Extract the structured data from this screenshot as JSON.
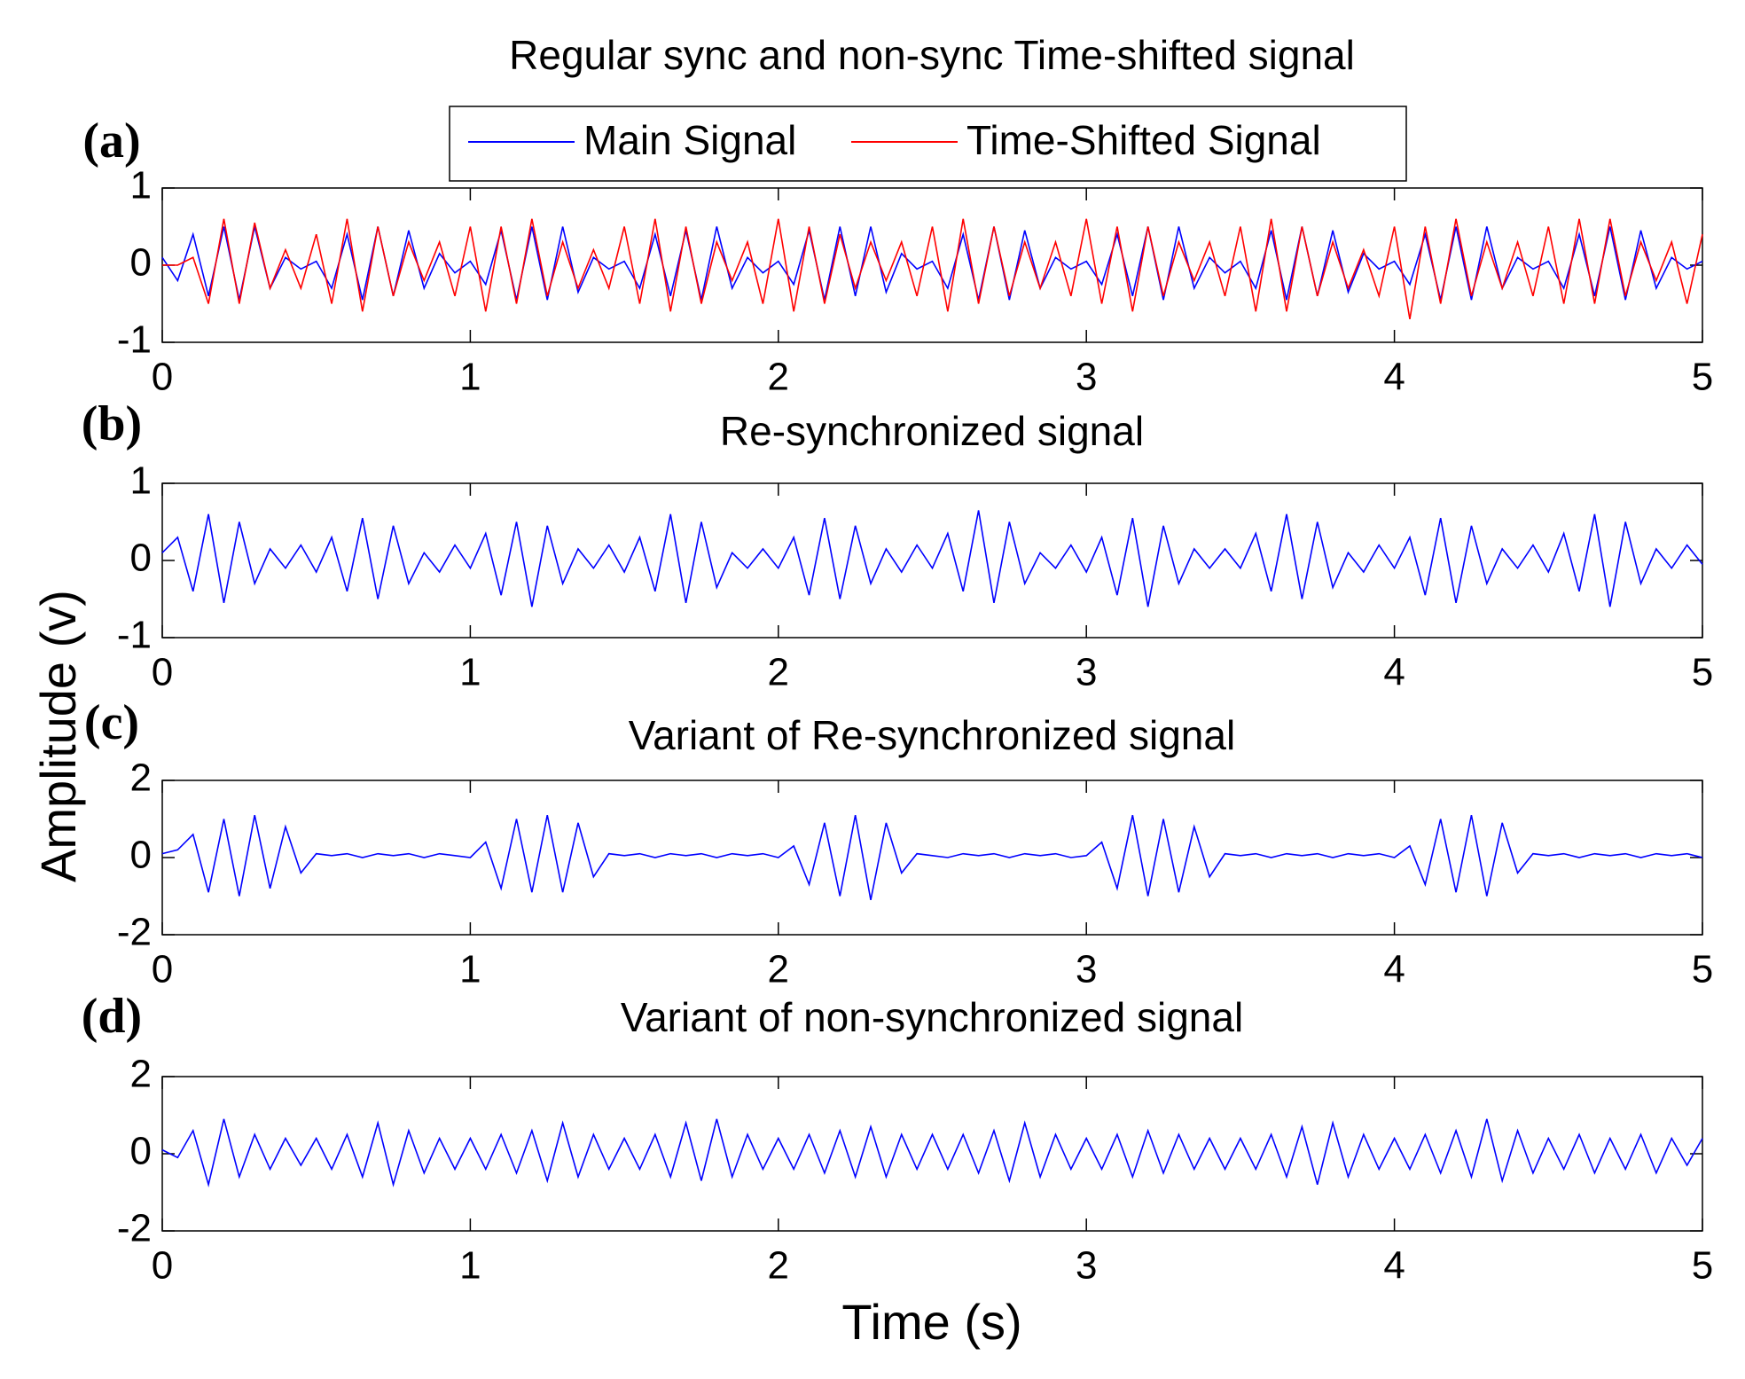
{
  "xlabel": "Time (s)",
  "ylabel": "Amplitude (v)",
  "chart_data": [
    {
      "type": "line",
      "panel_label": "(a)",
      "title": "Regular sync and non-sync Time-shifted signal",
      "x": [
        0,
        0.05,
        0.1,
        0.15,
        0.2,
        0.25,
        0.3,
        0.35,
        0.4,
        0.45,
        0.5,
        0.55,
        0.6,
        0.65,
        0.7,
        0.75,
        0.8,
        0.85,
        0.9,
        0.95,
        1,
        1.05,
        1.1,
        1.15,
        1.2,
        1.25,
        1.3,
        1.35,
        1.4,
        1.45,
        1.5,
        1.55,
        1.6,
        1.65,
        1.7,
        1.75,
        1.8,
        1.85,
        1.9,
        1.95,
        2,
        2.05,
        2.1,
        2.15,
        2.2,
        2.25,
        2.3,
        2.35,
        2.4,
        2.45,
        2.5,
        2.55,
        2.6,
        2.65,
        2.7,
        2.75,
        2.8,
        2.85,
        2.9,
        2.95,
        3,
        3.05,
        3.1,
        3.15,
        3.2,
        3.25,
        3.3,
        3.35,
        3.4,
        3.45,
        3.5,
        3.55,
        3.6,
        3.65,
        3.7,
        3.75,
        3.8,
        3.85,
        3.9,
        3.95,
        4,
        4.05,
        4.1,
        4.15,
        4.2,
        4.25,
        4.3,
        4.35,
        4.4,
        4.45,
        4.5,
        4.55,
        4.6,
        4.65,
        4.7,
        4.75,
        4.8,
        4.85,
        4.9,
        4.95,
        5
      ],
      "series": [
        {
          "name": "Main Signal",
          "color": "#0000ff",
          "values": [
            0.1,
            -0.2,
            0.4,
            -0.4,
            0.5,
            -0.45,
            0.5,
            -0.3,
            0.1,
            -0.05,
            0.05,
            -0.3,
            0.4,
            -0.45,
            0.5,
            -0.4,
            0.45,
            -0.3,
            0.15,
            -0.1,
            0.05,
            -0.25,
            0.45,
            -0.45,
            0.5,
            -0.45,
            0.5,
            -0.35,
            0.1,
            -0.05,
            0.05,
            -0.3,
            0.4,
            -0.4,
            0.45,
            -0.45,
            0.5,
            -0.3,
            0.1,
            -0.1,
            0.05,
            -0.25,
            0.45,
            -0.45,
            0.5,
            -0.4,
            0.5,
            -0.35,
            0.15,
            -0.05,
            0.05,
            -0.3,
            0.4,
            -0.45,
            0.5,
            -0.45,
            0.45,
            -0.3,
            0.1,
            -0.05,
            0.05,
            -0.25,
            0.4,
            -0.4,
            0.5,
            -0.45,
            0.5,
            -0.3,
            0.1,
            -0.1,
            0.05,
            -0.3,
            0.45,
            -0.45,
            0.5,
            -0.4,
            0.45,
            -0.35,
            0.15,
            -0.05,
            0.05,
            -0.25,
            0.4,
            -0.45,
            0.5,
            -0.45,
            0.5,
            -0.3,
            0.1,
            -0.05,
            0.05,
            -0.3,
            0.4,
            -0.4,
            0.5,
            -0.45,
            0.45,
            -0.3,
            0.1,
            -0.05,
            0.05
          ]
        },
        {
          "name": "Time-Shifted Signal",
          "color": "#ff0000",
          "values": [
            0,
            0,
            0.1,
            -0.5,
            0.6,
            -0.5,
            0.55,
            -0.3,
            0.2,
            -0.3,
            0.4,
            -0.5,
            0.6,
            -0.6,
            0.5,
            -0.4,
            0.3,
            -0.2,
            0.3,
            -0.4,
            0.5,
            -0.6,
            0.5,
            -0.5,
            0.6,
            -0.4,
            0.3,
            -0.3,
            0.2,
            -0.3,
            0.5,
            -0.5,
            0.6,
            -0.6,
            0.5,
            -0.5,
            0.3,
            -0.2,
            0.3,
            -0.5,
            0.6,
            -0.6,
            0.5,
            -0.5,
            0.4,
            -0.3,
            0.3,
            -0.2,
            0.3,
            -0.4,
            0.5,
            -0.6,
            0.6,
            -0.5,
            0.5,
            -0.4,
            0.3,
            -0.3,
            0.3,
            -0.4,
            0.6,
            -0.5,
            0.5,
            -0.6,
            0.5,
            -0.4,
            0.3,
            -0.2,
            0.3,
            -0.4,
            0.5,
            -0.6,
            0.6,
            -0.6,
            0.5,
            -0.4,
            0.3,
            -0.3,
            0.2,
            -0.4,
            0.5,
            -0.7,
            0.5,
            -0.5,
            0.6,
            -0.4,
            0.3,
            -0.3,
            0.3,
            -0.4,
            0.5,
            -0.5,
            0.6,
            -0.5,
            0.6,
            -0.4,
            0.3,
            -0.2,
            0.3,
            -0.5,
            0.4
          ]
        }
      ],
      "xlim": [
        0,
        5
      ],
      "xticks": [
        0,
        1,
        2,
        3,
        4,
        5
      ],
      "ylim": [
        -1,
        1
      ],
      "yticks": [
        -1,
        0,
        1
      ]
    },
    {
      "type": "line",
      "panel_label": "(b)",
      "title": "Re-synchronized signal",
      "color": "#0000ff",
      "x": [
        0,
        0.05,
        0.1,
        0.15,
        0.2,
        0.25,
        0.3,
        0.35,
        0.4,
        0.45,
        0.5,
        0.55,
        0.6,
        0.65,
        0.7,
        0.75,
        0.8,
        0.85,
        0.9,
        0.95,
        1,
        1.05,
        1.1,
        1.15,
        1.2,
        1.25,
        1.3,
        1.35,
        1.4,
        1.45,
        1.5,
        1.55,
        1.6,
        1.65,
        1.7,
        1.75,
        1.8,
        1.85,
        1.9,
        1.95,
        2,
        2.05,
        2.1,
        2.15,
        2.2,
        2.25,
        2.3,
        2.35,
        2.4,
        2.45,
        2.5,
        2.55,
        2.6,
        2.65,
        2.7,
        2.75,
        2.8,
        2.85,
        2.9,
        2.95,
        3,
        3.05,
        3.1,
        3.15,
        3.2,
        3.25,
        3.3,
        3.35,
        3.4,
        3.45,
        3.5,
        3.55,
        3.6,
        3.65,
        3.7,
        3.75,
        3.8,
        3.85,
        3.9,
        3.95,
        4,
        4.05,
        4.1,
        4.15,
        4.2,
        4.25,
        4.3,
        4.35,
        4.4,
        4.45,
        4.5,
        4.55,
        4.6,
        4.65,
        4.7,
        4.75,
        4.8,
        4.85,
        4.9,
        4.95,
        5
      ],
      "values": [
        0.1,
        0.3,
        -0.4,
        0.6,
        -0.55,
        0.5,
        -0.3,
        0.15,
        -0.1,
        0.2,
        -0.15,
        0.3,
        -0.4,
        0.55,
        -0.5,
        0.45,
        -0.3,
        0.1,
        -0.15,
        0.2,
        -0.1,
        0.35,
        -0.45,
        0.5,
        -0.6,
        0.45,
        -0.3,
        0.15,
        -0.1,
        0.2,
        -0.15,
        0.3,
        -0.4,
        0.6,
        -0.55,
        0.5,
        -0.35,
        0.1,
        -0.1,
        0.15,
        -0.1,
        0.3,
        -0.45,
        0.55,
        -0.5,
        0.45,
        -0.3,
        0.15,
        -0.15,
        0.2,
        -0.1,
        0.35,
        -0.4,
        0.65,
        -0.55,
        0.5,
        -0.3,
        0.1,
        -0.1,
        0.2,
        -0.15,
        0.3,
        -0.45,
        0.55,
        -0.6,
        0.45,
        -0.3,
        0.15,
        -0.1,
        0.15,
        -0.1,
        0.35,
        -0.4,
        0.6,
        -0.5,
        0.5,
        -0.35,
        0.1,
        -0.15,
        0.2,
        -0.1,
        0.3,
        -0.45,
        0.55,
        -0.55,
        0.45,
        -0.3,
        0.15,
        -0.1,
        0.2,
        -0.15,
        0.35,
        -0.4,
        0.6,
        -0.6,
        0.5,
        -0.3,
        0.15,
        -0.1,
        0.2,
        -0.05
      ],
      "xlim": [
        0,
        5
      ],
      "xticks": [
        0,
        1,
        2,
        3,
        4,
        5
      ],
      "ylim": [
        -1,
        1
      ],
      "yticks": [
        -1,
        0,
        1
      ]
    },
    {
      "type": "line",
      "panel_label": "(c)",
      "title": "Variant of Re-synchronized signal",
      "color": "#0000ff",
      "x": [
        0,
        0.05,
        0.1,
        0.15,
        0.2,
        0.25,
        0.3,
        0.35,
        0.4,
        0.45,
        0.5,
        0.55,
        0.6,
        0.65,
        0.7,
        0.75,
        0.8,
        0.85,
        0.9,
        0.95,
        1,
        1.05,
        1.1,
        1.15,
        1.2,
        1.25,
        1.3,
        1.35,
        1.4,
        1.45,
        1.5,
        1.55,
        1.6,
        1.65,
        1.7,
        1.75,
        1.8,
        1.85,
        1.9,
        1.95,
        2,
        2.05,
        2.1,
        2.15,
        2.2,
        2.25,
        2.3,
        2.35,
        2.4,
        2.45,
        2.5,
        2.55,
        2.6,
        2.65,
        2.7,
        2.75,
        2.8,
        2.85,
        2.9,
        2.95,
        3,
        3.05,
        3.1,
        3.15,
        3.2,
        3.25,
        3.3,
        3.35,
        3.4,
        3.45,
        3.5,
        3.55,
        3.6,
        3.65,
        3.7,
        3.75,
        3.8,
        3.85,
        3.9,
        3.95,
        4,
        4.05,
        4.1,
        4.15,
        4.2,
        4.25,
        4.3,
        4.35,
        4.4,
        4.45,
        4.5,
        4.55,
        4.6,
        4.65,
        4.7,
        4.75,
        4.8,
        4.85,
        4.9,
        4.95,
        5
      ],
      "values": [
        0.1,
        0.2,
        0.6,
        -0.9,
        1.0,
        -1.0,
        1.1,
        -0.8,
        0.8,
        -0.4,
        0.1,
        0.05,
        0.1,
        0,
        0.1,
        0.05,
        0.1,
        0,
        0.1,
        0.05,
        0,
        0.4,
        -0.8,
        1.0,
        -0.9,
        1.1,
        -0.9,
        0.9,
        -0.5,
        0.1,
        0.05,
        0.1,
        0,
        0.1,
        0.05,
        0.1,
        0,
        0.1,
        0.05,
        0.1,
        0,
        0.3,
        -0.7,
        0.9,
        -1.0,
        1.1,
        -1.1,
        0.9,
        -0.4,
        0.1,
        0.05,
        0,
        0.1,
        0.05,
        0.1,
        0,
        0.1,
        0.05,
        0.1,
        0,
        0.05,
        0.4,
        -0.8,
        1.1,
        -1.0,
        1.0,
        -0.9,
        0.8,
        -0.5,
        0.1,
        0.05,
        0.1,
        0,
        0.1,
        0.05,
        0.1,
        0,
        0.1,
        0.05,
        0.1,
        0,
        0.3,
        -0.7,
        1.0,
        -0.9,
        1.1,
        -1.0,
        0.9,
        -0.4,
        0.1,
        0.05,
        0.1,
        0,
        0.1,
        0.05,
        0.1,
        0,
        0.1,
        0.05,
        0.1,
        0
      ],
      "xlim": [
        0,
        5
      ],
      "xticks": [
        0,
        1,
        2,
        3,
        4,
        5
      ],
      "ylim": [
        -2,
        2
      ],
      "yticks": [
        -2,
        0,
        2
      ]
    },
    {
      "type": "line",
      "panel_label": "(d)",
      "title": "Variant of non-synchronized signal",
      "color": "#0000ff",
      "x": [
        0,
        0.05,
        0.1,
        0.15,
        0.2,
        0.25,
        0.3,
        0.35,
        0.4,
        0.45,
        0.5,
        0.55,
        0.6,
        0.65,
        0.7,
        0.75,
        0.8,
        0.85,
        0.9,
        0.95,
        1,
        1.05,
        1.1,
        1.15,
        1.2,
        1.25,
        1.3,
        1.35,
        1.4,
        1.45,
        1.5,
        1.55,
        1.6,
        1.65,
        1.7,
        1.75,
        1.8,
        1.85,
        1.9,
        1.95,
        2,
        2.05,
        2.1,
        2.15,
        2.2,
        2.25,
        2.3,
        2.35,
        2.4,
        2.45,
        2.5,
        2.55,
        2.6,
        2.65,
        2.7,
        2.75,
        2.8,
        2.85,
        2.9,
        2.95,
        3,
        3.05,
        3.1,
        3.15,
        3.2,
        3.25,
        3.3,
        3.35,
        3.4,
        3.45,
        3.5,
        3.55,
        3.6,
        3.65,
        3.7,
        3.75,
        3.8,
        3.85,
        3.9,
        3.95,
        4,
        4.05,
        4.1,
        4.15,
        4.2,
        4.25,
        4.3,
        4.35,
        4.4,
        4.45,
        4.5,
        4.55,
        4.6,
        4.65,
        4.7,
        4.75,
        4.8,
        4.85,
        4.9,
        4.95,
        5
      ],
      "values": [
        0.1,
        -0.1,
        0.6,
        -0.8,
        0.9,
        -0.6,
        0.5,
        -0.4,
        0.4,
        -0.3,
        0.4,
        -0.4,
        0.5,
        -0.6,
        0.8,
        -0.8,
        0.6,
        -0.5,
        0.4,
        -0.4,
        0.4,
        -0.4,
        0.5,
        -0.5,
        0.6,
        -0.7,
        0.8,
        -0.6,
        0.5,
        -0.4,
        0.4,
        -0.4,
        0.5,
        -0.6,
        0.8,
        -0.7,
        0.9,
        -0.6,
        0.5,
        -0.4,
        0.4,
        -0.4,
        0.5,
        -0.5,
        0.6,
        -0.6,
        0.7,
        -0.6,
        0.5,
        -0.4,
        0.5,
        -0.4,
        0.5,
        -0.5,
        0.6,
        -0.7,
        0.8,
        -0.6,
        0.5,
        -0.4,
        0.4,
        -0.4,
        0.5,
        -0.6,
        0.6,
        -0.5,
        0.5,
        -0.4,
        0.4,
        -0.4,
        0.4,
        -0.4,
        0.5,
        -0.6,
        0.7,
        -0.8,
        0.8,
        -0.6,
        0.5,
        -0.4,
        0.4,
        -0.4,
        0.5,
        -0.5,
        0.6,
        -0.6,
        0.9,
        -0.7,
        0.6,
        -0.5,
        0.4,
        -0.4,
        0.5,
        -0.5,
        0.4,
        -0.4,
        0.5,
        -0.5,
        0.4,
        -0.3,
        0.4
      ],
      "xlim": [
        0,
        5
      ],
      "xticks": [
        0,
        1,
        2,
        3,
        4,
        5
      ],
      "ylim": [
        -2,
        2
      ],
      "yticks": [
        -2,
        0,
        2
      ]
    }
  ]
}
